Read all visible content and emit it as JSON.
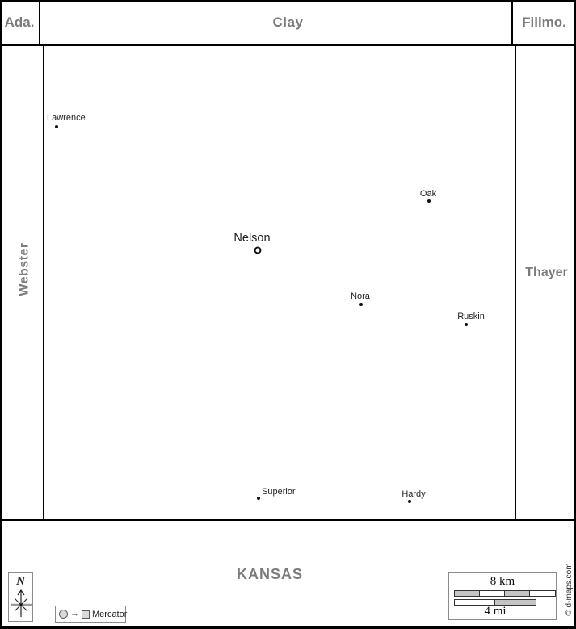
{
  "region": {
    "top_left": "Ada.",
    "top_center": "Clay",
    "top_right": "Fillmo.",
    "left": "Webster",
    "right": "Thayer",
    "bottom": "KANSAS"
  },
  "map": {
    "towns": [
      {
        "name": "Lawrence",
        "dot": [
          70,
          157
        ],
        "label": [
          58,
          140
        ],
        "anchor": "left",
        "seat": false
      },
      {
        "name": "Oak",
        "dot": [
          531,
          249
        ],
        "label": [
          530,
          234
        ],
        "anchor": "center",
        "seat": false
      },
      {
        "name": "Nelson",
        "dot": [
          319,
          310
        ],
        "label": [
          312,
          287
        ],
        "anchor": "center",
        "seat": true
      },
      {
        "name": "Nora",
        "dot": [
          447,
          377
        ],
        "label": [
          446,
          361
        ],
        "anchor": "center",
        "seat": false
      },
      {
        "name": "Ruskin",
        "dot": [
          577,
          402
        ],
        "label": [
          583,
          386
        ],
        "anchor": "center",
        "seat": false
      },
      {
        "name": "Superior",
        "dot": [
          320,
          617
        ],
        "label": [
          324,
          603
        ],
        "anchor": "left",
        "seat": false
      },
      {
        "name": "Hardy",
        "dot": [
          507,
          621
        ],
        "label": [
          512,
          606
        ],
        "anchor": "center",
        "seat": false
      }
    ]
  },
  "compass": {
    "north_label": "N"
  },
  "legend": {
    "projection_label": "Mercator",
    "projection_arrow": "→"
  },
  "scale": {
    "km_label": "8 km",
    "mi_label": "4 mi"
  },
  "credit": "© d-maps.com",
  "colors": {
    "county_label_gray": "#7b7b7b",
    "border_black": "#000000",
    "scale_fill_gray": "#c4c4c4",
    "legend_shape_fill": "#d9d9d9"
  }
}
